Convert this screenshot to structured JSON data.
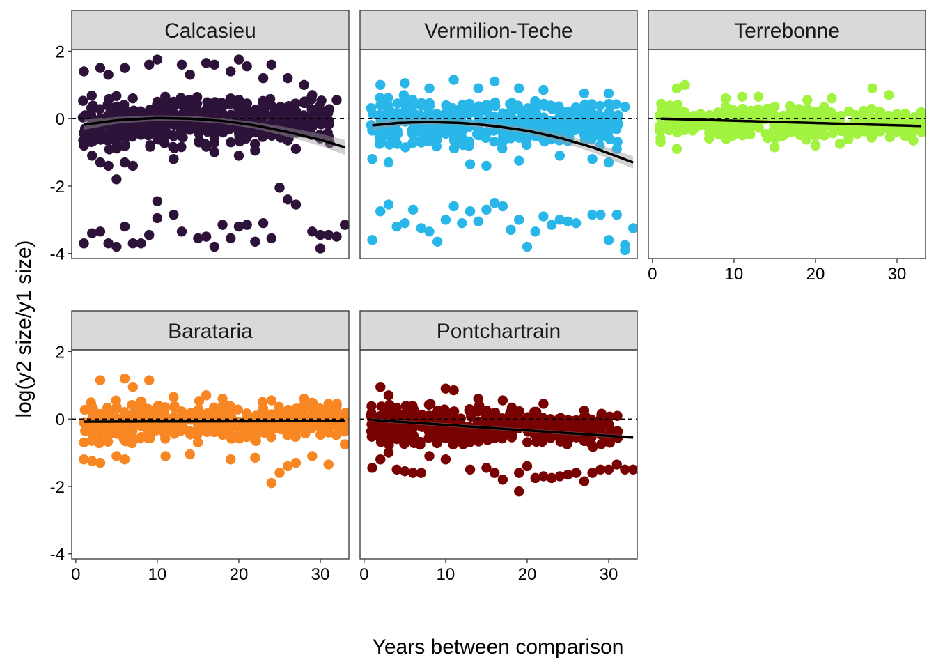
{
  "chart_data": {
    "type": "scatter",
    "layout": "facet_wrap",
    "xlabel": "Years between comparison",
    "ylabel": "log(y2 size/y1 size)",
    "xlim": [
      -0.5,
      33.5
    ],
    "ylim": [
      -4.15,
      2.05
    ],
    "x_ticks": [
      0,
      10,
      20,
      30
    ],
    "y_ticks": [
      2,
      0,
      -2,
      -4
    ],
    "y_tick_labels": [
      "2",
      "0",
      "-2",
      "-4"
    ],
    "reference_line_y": 0,
    "grid": false,
    "legend": "none",
    "panels": [
      {
        "title": "Calcasieu",
        "color": "#2d1239",
        "fit": "quadratic",
        "fit_points": [
          [
            1,
            -0.18
          ],
          [
            5,
            -0.05
          ],
          [
            10,
            0.02
          ],
          [
            14,
            0.0
          ],
          [
            18,
            -0.07
          ],
          [
            22,
            -0.2
          ],
          [
            26,
            -0.4
          ],
          [
            30,
            -0.63
          ],
          [
            33,
            -0.85
          ]
        ],
        "band_halfwidth": [
          0.15,
          0.1,
          0.08,
          0.08,
          0.08,
          0.1,
          0.14,
          0.18,
          0.22
        ],
        "core": {
          "x": [
            1,
            31
          ],
          "y_center": [
            -0.15,
            -0.05
          ],
          "y_spread": [
            0.85,
            0.7
          ],
          "count": 480
        },
        "points": [
          [
            3,
            1.5
          ],
          [
            6,
            1.5
          ],
          [
            9,
            1.6
          ],
          [
            10,
            1.75
          ],
          [
            13,
            1.6
          ],
          [
            16,
            1.65
          ],
          [
            17,
            1.6
          ],
          [
            20,
            1.75
          ],
          [
            21,
            1.55
          ],
          [
            24,
            1.6
          ],
          [
            26,
            1.2
          ],
          [
            28,
            1.0
          ],
          [
            29,
            0.7
          ],
          [
            32,
            0.55
          ],
          [
            1,
            1.4
          ],
          [
            4,
            1.3
          ],
          [
            14,
            1.3
          ],
          [
            19,
            1.4
          ],
          [
            23,
            1.2
          ],
          [
            25,
            -2.05
          ],
          [
            26,
            -2.4
          ],
          [
            27,
            -2.55
          ],
          [
            10,
            -2.45
          ],
          [
            1,
            -3.7
          ],
          [
            2,
            -3.4
          ],
          [
            3,
            -3.35
          ],
          [
            4,
            -3.7
          ],
          [
            5,
            -3.8
          ],
          [
            6,
            -3.2
          ],
          [
            7,
            -3.7
          ],
          [
            8,
            -3.7
          ],
          [
            9,
            -3.45
          ],
          [
            10,
            -2.95
          ],
          [
            12,
            -2.85
          ],
          [
            13,
            -3.35
          ],
          [
            15,
            -3.55
          ],
          [
            16,
            -3.5
          ],
          [
            17,
            -3.8
          ],
          [
            18,
            -3.15
          ],
          [
            19,
            -3.55
          ],
          [
            20,
            -3.2
          ],
          [
            21,
            -3.15
          ],
          [
            22,
            -3.65
          ],
          [
            23,
            -3.1
          ],
          [
            24,
            -3.55
          ],
          [
            29,
            -3.35
          ],
          [
            30,
            -3.45
          ],
          [
            31,
            -3.45
          ],
          [
            32,
            -3.5
          ],
          [
            33,
            -3.15
          ],
          [
            30,
            -3.85
          ],
          [
            1,
            -0.8
          ],
          [
            2,
            -1.1
          ],
          [
            3,
            -1.3
          ],
          [
            4,
            -1.4
          ],
          [
            5,
            -1.8
          ],
          [
            6,
            -1.3
          ],
          [
            7,
            -1.4
          ],
          [
            12,
            -1.2
          ],
          [
            17,
            -1.0
          ],
          [
            20,
            -1.1
          ],
          [
            22,
            -0.95
          ],
          [
            27,
            -0.9
          ]
        ]
      },
      {
        "title": "Vermilion-Teche",
        "color": "#29b6e9",
        "fit": "quadratic",
        "fit_points": [
          [
            1,
            -0.2
          ],
          [
            4,
            -0.13
          ],
          [
            8,
            -0.1
          ],
          [
            12,
            -0.13
          ],
          [
            16,
            -0.22
          ],
          [
            20,
            -0.36
          ],
          [
            24,
            -0.57
          ],
          [
            28,
            -0.85
          ],
          [
            33,
            -1.3
          ]
        ],
        "band_halfwidth": [
          0.14,
          0.1,
          0.08,
          0.08,
          0.09,
          0.1,
          0.12,
          0.15,
          0.18
        ],
        "core": {
          "x": [
            1,
            31
          ],
          "y_center": [
            -0.1,
            -0.2
          ],
          "y_spread": [
            0.85,
            0.65
          ],
          "count": 460
        },
        "points": [
          [
            2,
            1.0
          ],
          [
            5,
            1.05
          ],
          [
            8,
            0.9
          ],
          [
            11,
            1.15
          ],
          [
            14,
            0.9
          ],
          [
            16,
            1.1
          ],
          [
            19,
            0.9
          ],
          [
            22,
            0.85
          ],
          [
            27,
            0.75
          ],
          [
            30,
            0.75
          ],
          [
            32,
            0.35
          ],
          [
            1,
            -1.2
          ],
          [
            3,
            -1.3
          ],
          [
            13,
            -1.35
          ],
          [
            15,
            -1.4
          ],
          [
            19,
            -1.25
          ],
          [
            24,
            -1.1
          ],
          [
            28,
            -1.2
          ],
          [
            30,
            -1.3
          ],
          [
            31,
            -0.9
          ],
          [
            1,
            -3.6
          ],
          [
            2,
            -2.75
          ],
          [
            3,
            -2.55
          ],
          [
            4,
            -3.2
          ],
          [
            5,
            -3.1
          ],
          [
            6,
            -2.7
          ],
          [
            7,
            -3.25
          ],
          [
            8,
            -3.35
          ],
          [
            9,
            -3.65
          ],
          [
            10,
            -3.0
          ],
          [
            11,
            -2.6
          ],
          [
            12,
            -3.1
          ],
          [
            13,
            -2.75
          ],
          [
            14,
            -3.05
          ],
          [
            15,
            -2.7
          ],
          [
            16,
            -2.5
          ],
          [
            17,
            -2.6
          ],
          [
            18,
            -3.3
          ],
          [
            19,
            -3.0
          ],
          [
            20,
            -3.8
          ],
          [
            21,
            -3.35
          ],
          [
            22,
            -2.9
          ],
          [
            23,
            -3.15
          ],
          [
            24,
            -3.0
          ],
          [
            25,
            -3.05
          ],
          [
            26,
            -3.1
          ],
          [
            28,
            -2.85
          ],
          [
            29,
            -2.85
          ],
          [
            30,
            -3.6
          ],
          [
            31,
            -2.85
          ],
          [
            32,
            -3.75
          ],
          [
            32,
            -3.9
          ],
          [
            33,
            -3.25
          ]
        ]
      },
      {
        "title": "Terrebonne",
        "color": "#a2f340",
        "fit": "linear",
        "fit_points": [
          [
            1,
            0.0
          ],
          [
            33,
            -0.22
          ]
        ],
        "band_halfwidth": [
          0.03,
          0.03
        ],
        "core": {
          "x": [
            1,
            33
          ],
          "y_center": [
            -0.05,
            -0.2
          ],
          "y_spread": [
            0.55,
            0.45
          ],
          "count": 420
        },
        "points": [
          [
            3,
            0.9
          ],
          [
            4,
            1.0
          ],
          [
            9,
            0.6
          ],
          [
            11,
            0.65
          ],
          [
            13,
            0.65
          ],
          [
            19,
            0.55
          ],
          [
            22,
            0.6
          ],
          [
            27,
            0.9
          ],
          [
            29,
            0.7
          ],
          [
            1,
            -0.7
          ],
          [
            3,
            -0.9
          ],
          [
            15,
            -0.85
          ],
          [
            20,
            -0.8
          ],
          [
            23,
            -0.75
          ],
          [
            32,
            -0.65
          ],
          [
            33,
            -0.25
          ]
        ]
      },
      {
        "title": "Barataria",
        "color": "#f78623",
        "fit": "linear",
        "fit_points": [
          [
            1,
            -0.08
          ],
          [
            33,
            -0.06
          ]
        ],
        "band_halfwidth": [
          0.03,
          0.03
        ],
        "core": {
          "x": [
            1,
            33
          ],
          "y_center": [
            -0.1,
            -0.05
          ],
          "y_spread": [
            0.7,
            0.55
          ],
          "count": 440
        },
        "points": [
          [
            3,
            1.15
          ],
          [
            6,
            1.2
          ],
          [
            9,
            1.15
          ],
          [
            7,
            0.95
          ],
          [
            12,
            0.65
          ],
          [
            16,
            0.7
          ],
          [
            18,
            0.6
          ],
          [
            24,
            0.55
          ],
          [
            28,
            0.6
          ],
          [
            31,
            0.45
          ],
          [
            1,
            -1.2
          ],
          [
            2,
            -1.25
          ],
          [
            3,
            -1.3
          ],
          [
            5,
            -1.1
          ],
          [
            6,
            -1.2
          ],
          [
            11,
            -1.1
          ],
          [
            14,
            -1.05
          ],
          [
            19,
            -1.2
          ],
          [
            22,
            -1.15
          ],
          [
            24,
            -1.9
          ],
          [
            25,
            -1.6
          ],
          [
            26,
            -1.4
          ],
          [
            27,
            -1.3
          ],
          [
            29,
            -1.1
          ],
          [
            31,
            -1.35
          ],
          [
            33,
            -0.75
          ]
        ]
      },
      {
        "title": "Pontchartrain",
        "color": "#780202",
        "fit": "linear",
        "fit_points": [
          [
            1,
            -0.03
          ],
          [
            33,
            -0.55
          ]
        ],
        "band_halfwidth": [
          0.05,
          0.05
        ],
        "core": {
          "x": [
            1,
            31
          ],
          "y_center": [
            -0.1,
            -0.35
          ],
          "y_spread": [
            0.7,
            0.5
          ],
          "count": 440
        },
        "points": [
          [
            2,
            0.95
          ],
          [
            3,
            0.7
          ],
          [
            10,
            0.9
          ],
          [
            11,
            0.85
          ],
          [
            14,
            0.6
          ],
          [
            17,
            0.55
          ],
          [
            22,
            0.45
          ],
          [
            27,
            0.25
          ],
          [
            1,
            -1.45
          ],
          [
            2,
            -1.2
          ],
          [
            3,
            -1.0
          ],
          [
            4,
            -1.5
          ],
          [
            5,
            -1.55
          ],
          [
            6,
            -1.6
          ],
          [
            7,
            -1.6
          ],
          [
            8,
            -1.1
          ],
          [
            10,
            -1.2
          ],
          [
            13,
            -1.5
          ],
          [
            15,
            -1.45
          ],
          [
            16,
            -1.6
          ],
          [
            17,
            -1.8
          ],
          [
            19,
            -1.6
          ],
          [
            19,
            -2.15
          ],
          [
            20,
            -1.4
          ],
          [
            21,
            -1.75
          ],
          [
            22,
            -1.7
          ],
          [
            23,
            -1.75
          ],
          [
            24,
            -1.7
          ],
          [
            25,
            -1.65
          ],
          [
            26,
            -1.6
          ],
          [
            27,
            -1.85
          ],
          [
            28,
            -1.6
          ],
          [
            29,
            -1.5
          ],
          [
            30,
            -1.5
          ],
          [
            31,
            -1.35
          ],
          [
            32,
            -1.5
          ],
          [
            33,
            -1.5
          ]
        ]
      }
    ]
  }
}
